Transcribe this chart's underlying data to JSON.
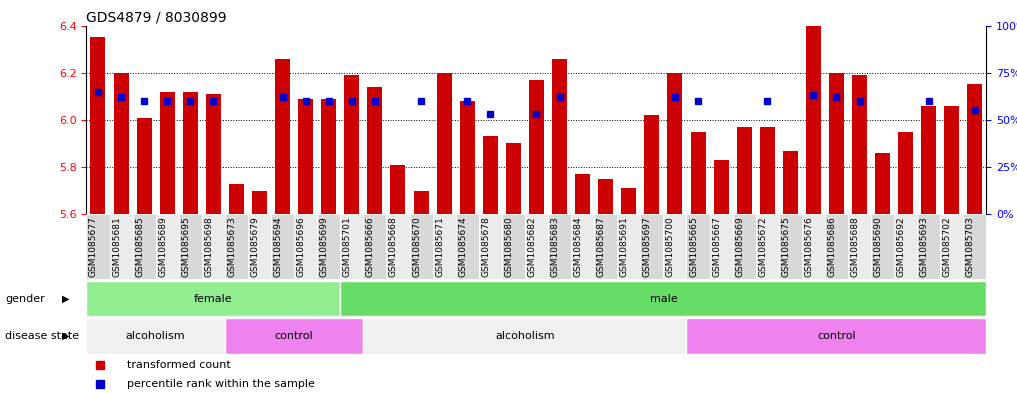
{
  "title": "GDS4879 / 8030899",
  "samples": [
    "GSM1085677",
    "GSM1085681",
    "GSM1085685",
    "GSM1085689",
    "GSM1085695",
    "GSM1085698",
    "GSM1085673",
    "GSM1085679",
    "GSM1085694",
    "GSM1085696",
    "GSM1085699",
    "GSM1085701",
    "GSM1085666",
    "GSM1085668",
    "GSM1085670",
    "GSM1085671",
    "GSM1085674",
    "GSM1085678",
    "GSM1085680",
    "GSM1085682",
    "GSM1085683",
    "GSM1085684",
    "GSM1085687",
    "GSM1085691",
    "GSM1085697",
    "GSM1085700",
    "GSM1085665",
    "GSM1085667",
    "GSM1085669",
    "GSM1085672",
    "GSM1085675",
    "GSM1085676",
    "GSM1085686",
    "GSM1085688",
    "GSM1085690",
    "GSM1085692",
    "GSM1085693",
    "GSM1085702",
    "GSM1085703"
  ],
  "bar_values": [
    6.35,
    6.2,
    6.01,
    6.12,
    6.12,
    6.11,
    5.73,
    5.7,
    6.26,
    6.09,
    6.09,
    6.19,
    6.14,
    5.81,
    5.7,
    6.2,
    6.08,
    5.93,
    5.9,
    6.17,
    6.26,
    5.77,
    5.75,
    5.71,
    6.02,
    6.2,
    5.95,
    5.83,
    5.97,
    5.97,
    5.87,
    6.4,
    6.2,
    6.19,
    5.86,
    5.95,
    6.06,
    6.06,
    6.15
  ],
  "percentile_values": [
    65,
    62,
    60,
    60,
    60,
    60,
    null,
    null,
    62,
    60,
    60,
    60,
    60,
    null,
    60,
    null,
    60,
    53,
    null,
    53,
    62,
    null,
    null,
    null,
    null,
    62,
    60,
    null,
    null,
    60,
    null,
    63,
    62,
    60,
    null,
    null,
    60,
    null,
    55
  ],
  "ylim": [
    5.6,
    6.4
  ],
  "yticks_left": [
    5.6,
    5.8,
    6.0,
    6.2,
    6.4
  ],
  "yticks_right": [
    0,
    25,
    50,
    75,
    100
  ],
  "ytick_right_labels": [
    "0%",
    "25%",
    "50%",
    "75%",
    "100%"
  ],
  "bar_color": "#CC0000",
  "dot_color": "#0000CC",
  "grid_lines": [
    5.8,
    6.0,
    6.2
  ],
  "gender_regions": [
    {
      "label": "female",
      "start": 0,
      "end": 11,
      "color": "#90EE90"
    },
    {
      "label": "male",
      "start": 11,
      "end": 39,
      "color": "#66DD66"
    }
  ],
  "disease_regions": [
    {
      "label": "alcoholism",
      "start": 0,
      "end": 6,
      "color": "#F0F0F0"
    },
    {
      "label": "control",
      "start": 6,
      "end": 12,
      "color": "#EE82EE"
    },
    {
      "label": "alcoholism",
      "start": 12,
      "end": 26,
      "color": "#F0F0F0"
    },
    {
      "label": "control",
      "start": 26,
      "end": 39,
      "color": "#EE82EE"
    }
  ],
  "legend_entries": [
    {
      "label": "transformed count",
      "color": "#CC0000",
      "marker": "s"
    },
    {
      "label": "percentile rank within the sample",
      "color": "#0000CC",
      "marker": "s"
    }
  ],
  "title_fontsize": 10,
  "tick_label_fontsize": 6.5,
  "annotation_fontsize": 8,
  "label_fontsize": 8
}
